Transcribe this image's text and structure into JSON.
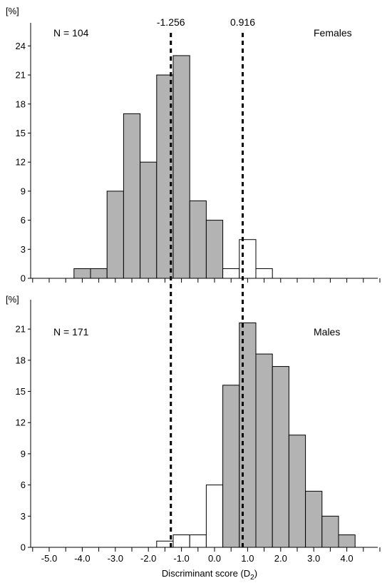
{
  "chart_data": {
    "type": "bar",
    "xlabel": "Discriminant score (D",
    "xlabel_subscript": "2",
    "xlabel_suffix": ")",
    "x_ticks": [
      "-5.0",
      "-4.0",
      "-3.0",
      "-2.0",
      "-1.0",
      "0.0",
      "1.0",
      "2.0",
      "3.0",
      "4.0"
    ],
    "bin_width": 0.5,
    "colors": {
      "filled": "#b3b3b3",
      "open": "#ffffff",
      "stroke": "#000000"
    },
    "reference_lines": [
      {
        "x": -1.256,
        "label": "-1.256"
      },
      {
        "x": 0.916,
        "label": "0.916"
      }
    ],
    "panels": [
      {
        "name": "Females",
        "n_label": "N = 104",
        "ylabel": "[%]",
        "ylim": [
          0,
          25.5
        ],
        "y_ticks": [
          "0",
          "3",
          "6",
          "9",
          "12",
          "15",
          "18",
          "21",
          "24"
        ],
        "bars": [
          {
            "x": -4.0,
            "value": 1,
            "filled": true
          },
          {
            "x": -3.5,
            "value": 1,
            "filled": true
          },
          {
            "x": -3.0,
            "value": 9,
            "filled": true
          },
          {
            "x": -2.5,
            "value": 17,
            "filled": true
          },
          {
            "x": -2.0,
            "value": 12,
            "filled": true
          },
          {
            "x": -1.5,
            "value": 21,
            "filled": true
          },
          {
            "x": -1.0,
            "value": 23,
            "filled": true
          },
          {
            "x": -0.5,
            "value": 8,
            "filled": true
          },
          {
            "x": 0.0,
            "value": 6,
            "filled": true
          },
          {
            "x": 0.5,
            "value": 1,
            "filled": false
          },
          {
            "x": 1.0,
            "value": 4,
            "filled": false
          },
          {
            "x": 1.5,
            "value": 1,
            "filled": false
          }
        ]
      },
      {
        "name": "Males",
        "n_label": "N = 171",
        "ylabel": "[%]",
        "ylim": [
          0,
          23
        ],
        "y_ticks": [
          "0",
          "3",
          "6",
          "9",
          "12",
          "15",
          "18",
          "21"
        ],
        "bars": [
          {
            "x": -1.5,
            "value": 0.6,
            "filled": false
          },
          {
            "x": -1.0,
            "value": 1.2,
            "filled": false
          },
          {
            "x": -0.5,
            "value": 1.2,
            "filled": false
          },
          {
            "x": 0.0,
            "value": 6,
            "filled": false
          },
          {
            "x": 0.5,
            "value": 15.6,
            "filled": true
          },
          {
            "x": 1.0,
            "value": 21.6,
            "filled": true
          },
          {
            "x": 1.5,
            "value": 18.6,
            "filled": true
          },
          {
            "x": 2.0,
            "value": 17.4,
            "filled": true
          },
          {
            "x": 2.5,
            "value": 10.8,
            "filled": true
          },
          {
            "x": 3.0,
            "value": 5.4,
            "filled": true
          },
          {
            "x": 3.5,
            "value": 3.0,
            "filled": true
          },
          {
            "x": 4.0,
            "value": 1.2,
            "filled": true
          }
        ]
      }
    ]
  }
}
